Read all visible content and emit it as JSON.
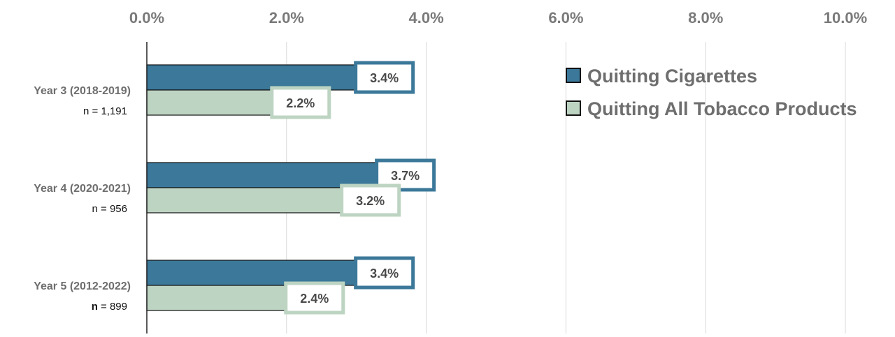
{
  "chart_data": {
    "type": "bar",
    "orientation": "horizontal",
    "categories": [
      "Year 3 (2018-2019)",
      "Year 4 (2020-2021)",
      "Year 5 (2012-2022)"
    ],
    "sample_sizes": [
      {
        "prefix": "n",
        "rest": " = 1,191"
      },
      {
        "prefix": "n",
        "rest": " = 956"
      },
      {
        "prefix": "n",
        "rest": " = 899"
      }
    ],
    "series": [
      {
        "name": "Quitting Cigarettes",
        "values": [
          3.4,
          3.7,
          3.4
        ],
        "labels": [
          "3.4%",
          "3.7%",
          "3.4%"
        ],
        "color": "#3b7899"
      },
      {
        "name": "Quitting All Tobacco Products",
        "values": [
          2.2,
          3.2,
          2.4
        ],
        "labels": [
          "2.2%",
          "3.2%",
          "2.4%"
        ],
        "color": "#bdd4c2"
      }
    ],
    "xlim": [
      0,
      10
    ],
    "ticks": [
      0,
      2,
      4,
      6,
      8,
      10
    ],
    "tick_labels": [
      "0.0%",
      "2.0%",
      "4.0%",
      "6.0%",
      "8.0%",
      "10.0%"
    ],
    "grid": true,
    "legend_position": "top-right",
    "title": "",
    "xlabel": "",
    "ylabel": ""
  }
}
